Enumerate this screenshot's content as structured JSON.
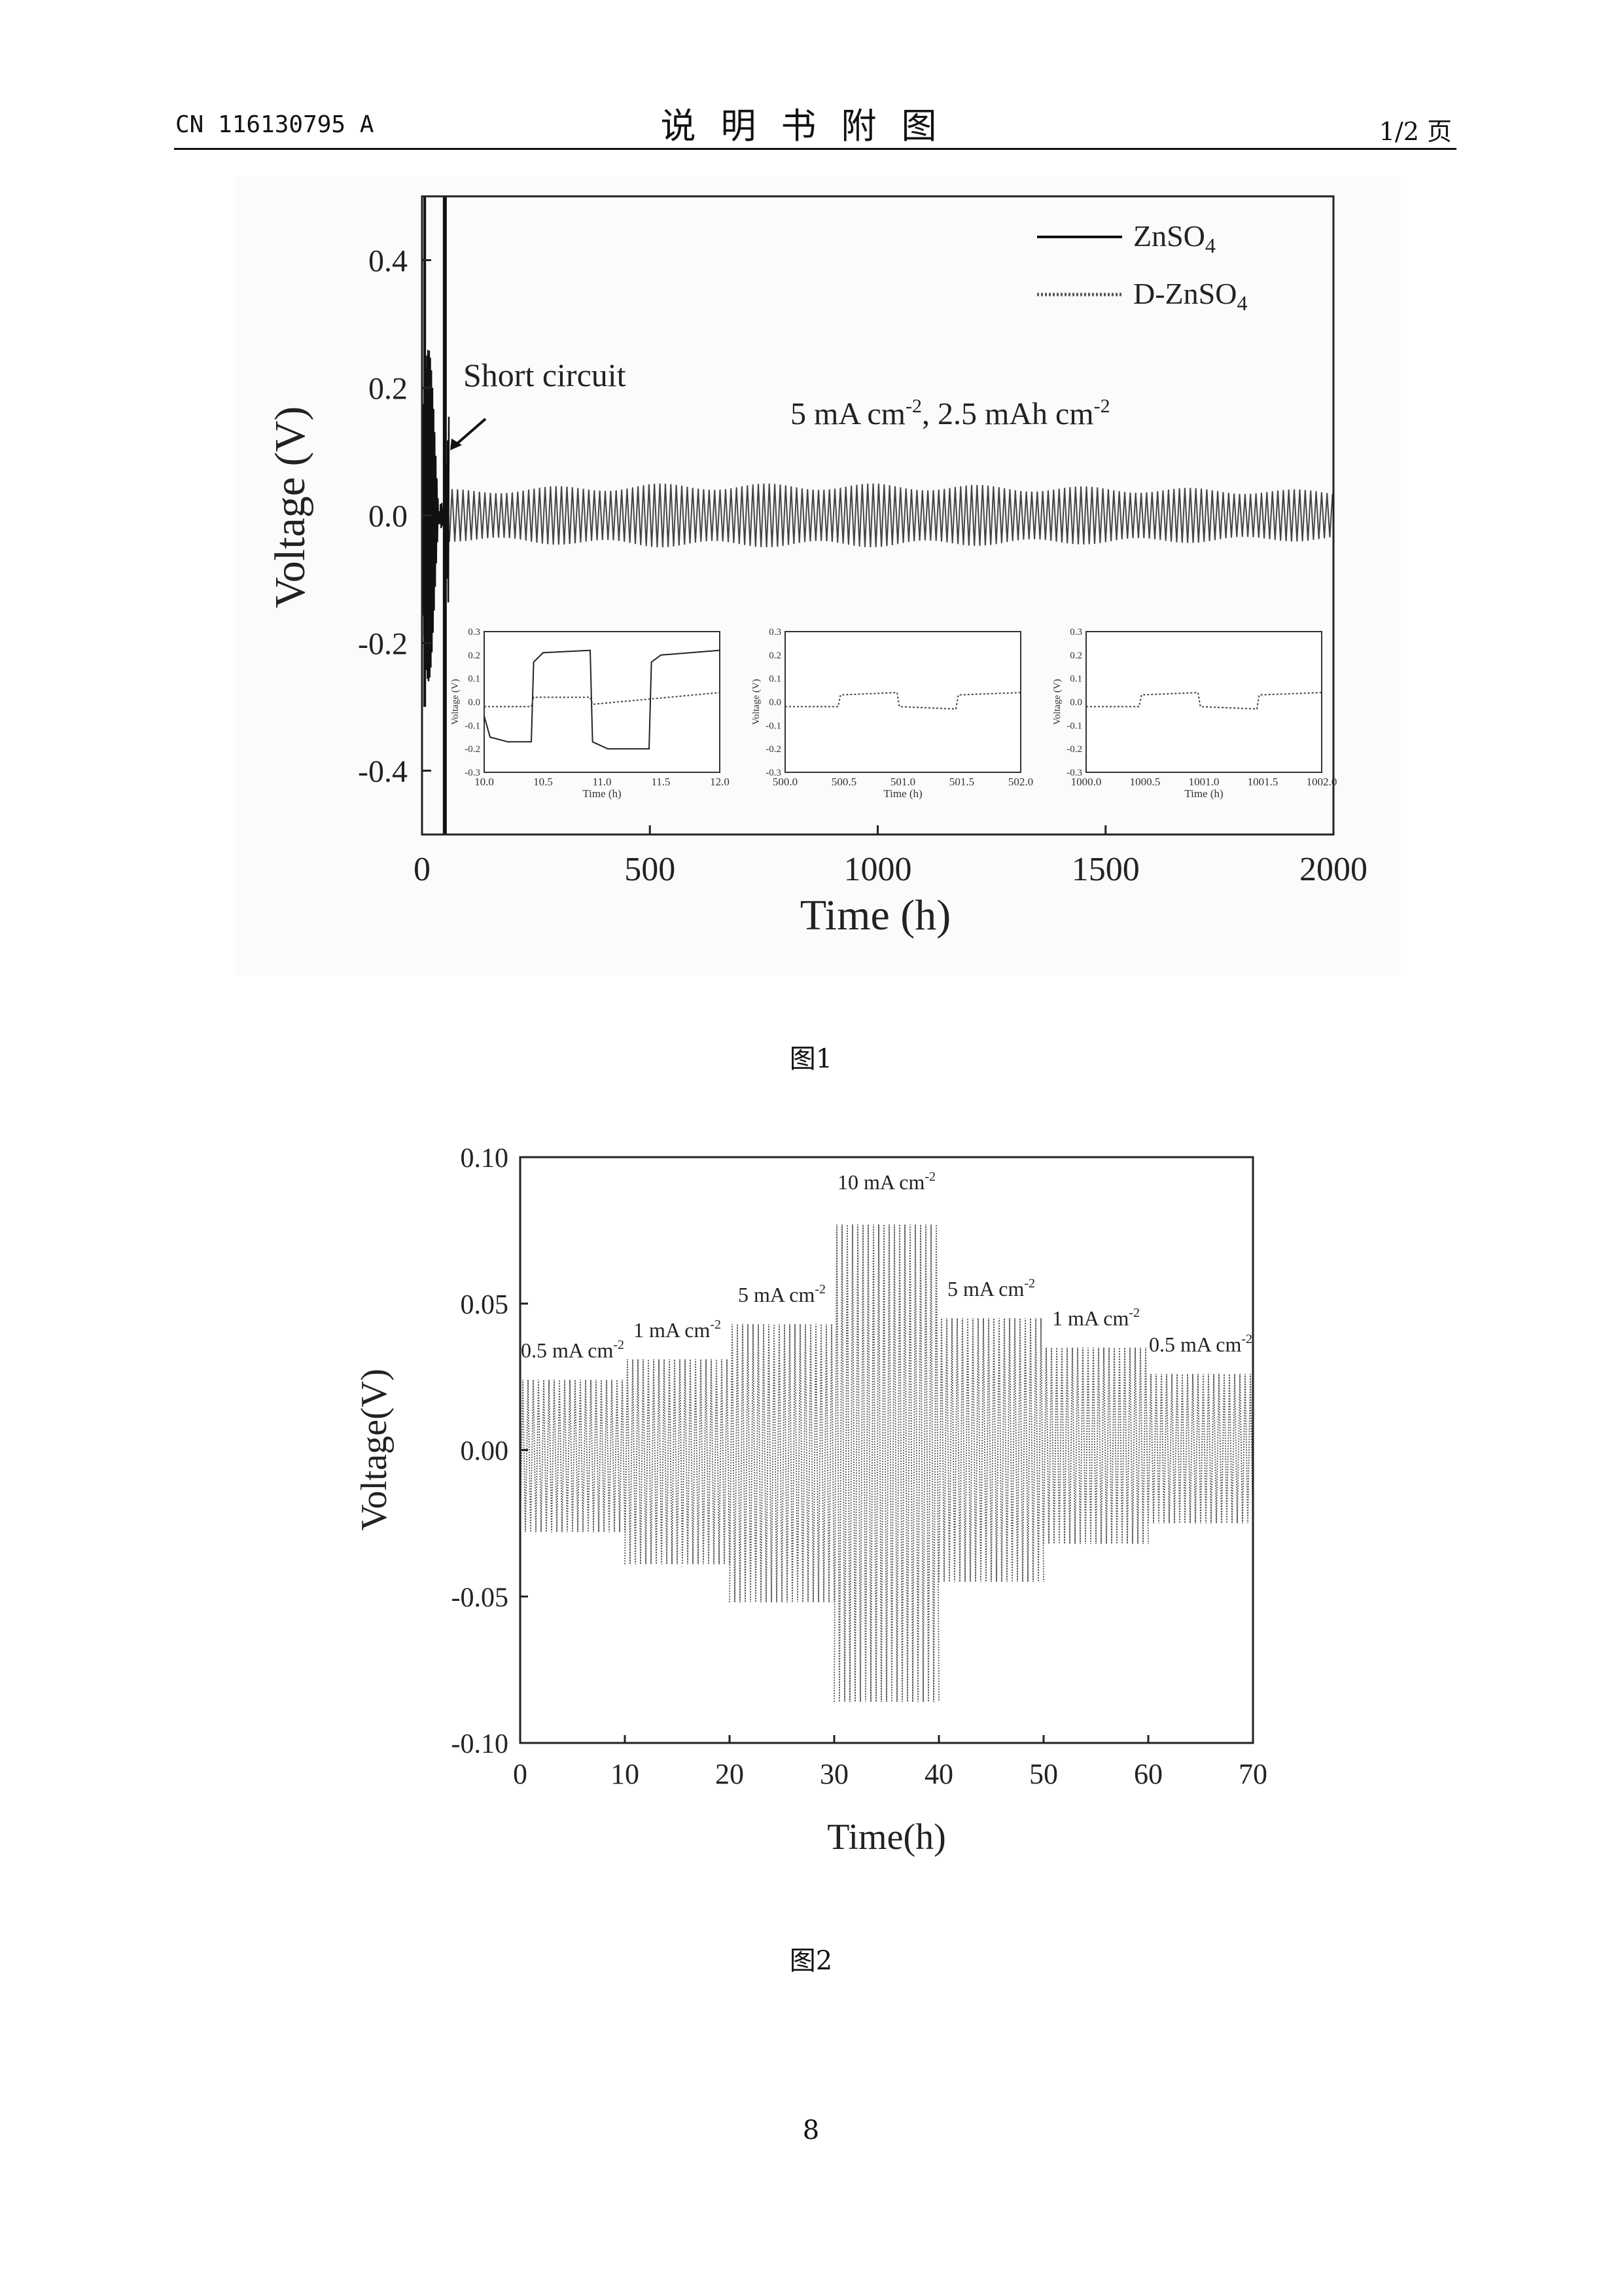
{
  "header": {
    "doc_number": "CN 116130795 A",
    "section_title": "说明书附图",
    "page_count": "1/2 页"
  },
  "figure1": {
    "caption": "图1",
    "annotation_short": "Short circuit",
    "annotation_condition": "5 mA cm-2, 2.5 mAh cm-2",
    "chart_data": {
      "type": "line",
      "xlabel": "Time (h)",
      "ylabel": "Voltage (V)",
      "xlim": [
        0,
        2000
      ],
      "ylim": [
        -0.5,
        0.5
      ],
      "xticks": [
        "0",
        "500",
        "1000",
        "1500",
        "2000"
      ],
      "yticks": [
        "0.4",
        "0.2",
        "0.0",
        "-0.2",
        "-0.4"
      ],
      "legend_position": "top-right",
      "series": [
        {
          "name": "ZnSO4",
          "style": "solid",
          "description_points": [
            [
              0,
              0.0
            ],
            [
              15,
              0.24
            ],
            [
              25,
              -0.3
            ],
            [
              40,
              0.18
            ],
            [
              55,
              -0.5
            ],
            [
              60,
              0.5
            ]
          ]
        },
        {
          "name": "D-ZnSO4",
          "style": "dotted",
          "amplitude": [
            [
              0,
              0.04
            ],
            [
              500,
              0.05
            ],
            [
              1000,
              0.05
            ],
            [
              2000,
              0.04
            ]
          ]
        }
      ],
      "insets": [
        {
          "xlim": [
            10.0,
            12.0
          ],
          "xticks": [
            "10.0",
            "10.5",
            "11.0",
            "11.5",
            "12.0"
          ],
          "ylim": [
            -0.3,
            0.3
          ],
          "yticks": [
            "0.3",
            "0.2",
            "0.1",
            "0.0",
            "-0.1",
            "-0.2",
            "-0.3"
          ],
          "xlabel": "Time (h)",
          "ylabel": "Voltage (V)"
        },
        {
          "xlim": [
            500.0,
            502.0
          ],
          "xticks": [
            "500.0",
            "500.5",
            "501.0",
            "501.5",
            "502.0"
          ],
          "ylim": [
            -0.3,
            0.3
          ],
          "yticks": [
            "0.3",
            "0.2",
            "0.1",
            "0.0",
            "-0.1",
            "-0.2",
            "-0.3"
          ],
          "xlabel": "Time (h)",
          "ylabel": "Voltage (V)"
        },
        {
          "xlim": [
            1000.0,
            1002.0
          ],
          "xticks": [
            "1000.0",
            "1000.5",
            "1001.0",
            "1001.5",
            "1002.0"
          ],
          "ylim": [
            -0.3,
            0.3
          ],
          "yticks": [
            "0.3",
            "0.2",
            "0.1",
            "0.0",
            "-0.1",
            "-0.2",
            "-0.3"
          ],
          "xlabel": "Time (h)",
          "ylabel": "Voltage (V)"
        }
      ]
    }
  },
  "figure2": {
    "caption": "图2",
    "chart_data": {
      "type": "line",
      "xlabel": "Time(h)",
      "ylabel": "Voltage(V)",
      "xlim": [
        0,
        70
      ],
      "ylim": [
        -0.1,
        0.1
      ],
      "xticks": [
        "0",
        "10",
        "20",
        "30",
        "40",
        "50",
        "60",
        "70"
      ],
      "yticks": [
        "0.10",
        "0.05",
        "0.00",
        "-0.05",
        "-0.10"
      ],
      "segments": [
        {
          "label": "0.5 mA cm-2",
          "start": 0,
          "end": 10,
          "upper": 0.024,
          "lower": -0.028
        },
        {
          "label": "1 mA cm-2",
          "start": 10,
          "end": 20,
          "upper": 0.031,
          "lower": -0.039
        },
        {
          "label": "5 mA cm-2",
          "start": 20,
          "end": 30,
          "upper": 0.043,
          "lower": -0.052
        },
        {
          "label": "10 mA cm-2",
          "start": 30,
          "end": 40,
          "upper": 0.077,
          "lower": -0.086
        },
        {
          "label": "5 mA cm-2",
          "start": 40,
          "end": 50,
          "upper": 0.045,
          "lower": -0.045
        },
        {
          "label": "1 mA cm-2",
          "start": 50,
          "end": 60,
          "upper": 0.035,
          "lower": -0.032
        },
        {
          "label": "0.5 mA cm-2",
          "start": 60,
          "end": 70,
          "upper": 0.026,
          "lower": -0.025
        }
      ]
    }
  },
  "page_number": "8"
}
